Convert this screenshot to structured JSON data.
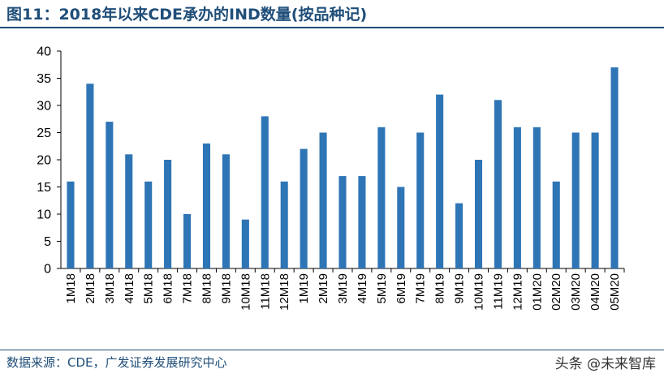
{
  "header": {
    "title": "图11：2018年以来CDE承办的IND数量(按品种记)"
  },
  "footer": {
    "source": "数据来源：CDE，广发证券发展研究中心",
    "watermark": "头条 @未来智库"
  },
  "colors": {
    "bar": "#2e75b6",
    "accent": "#1f4e79"
  },
  "chart_data": {
    "type": "bar",
    "title": "",
    "xlabel": "",
    "ylabel": "",
    "ylim": [
      0,
      40
    ],
    "yticks": [
      0,
      5,
      10,
      15,
      20,
      25,
      30,
      35,
      40
    ],
    "grid": false,
    "categories": [
      "1M18",
      "2M18",
      "3M18",
      "4M18",
      "5M18",
      "6M18",
      "7M18",
      "8M18",
      "9M18",
      "10M18",
      "11M18",
      "12M18",
      "1M19",
      "2M19",
      "3M19",
      "4M19",
      "5M19",
      "6M19",
      "7M19",
      "8M19",
      "9M19",
      "10M19",
      "11M19",
      "12M19",
      "01M20",
      "02M20",
      "03M20",
      "04M20",
      "05M20"
    ],
    "values": [
      16,
      34,
      27,
      21,
      16,
      20,
      10,
      23,
      21,
      9,
      28,
      16,
      22,
      25,
      17,
      17,
      26,
      15,
      25,
      32,
      12,
      20,
      31,
      26,
      26,
      16,
      25,
      25,
      37
    ]
  }
}
